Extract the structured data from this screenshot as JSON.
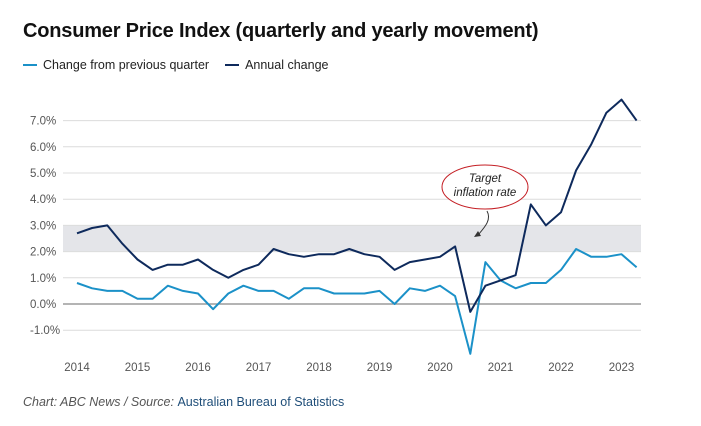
{
  "colors": {
    "quarterly": "#1b91c8",
    "annual": "#0e2a5c",
    "band": "#e4e5e9",
    "grid": "#dcdcdc",
    "zero": "#888888",
    "annotation": "#c41e24"
  },
  "footer": {
    "prefix": "Chart: ABC News / Source: ",
    "source_link": "Australian Bureau of Statistics"
  },
  "chart_data": {
    "type": "line",
    "title": "Consumer Price Index (quarterly and yearly movement)",
    "xlabel": "",
    "ylabel": "",
    "ylim": [
      -1.8,
      8.0
    ],
    "xlim": [
      2014.0,
      2023.25
    ],
    "yticks": [
      -1.0,
      0.0,
      1.0,
      2.0,
      3.0,
      4.0,
      5.0,
      6.0,
      7.0
    ],
    "ytick_labels": [
      "-1.0%",
      "0.0%",
      "1.0%",
      "2.0%",
      "3.0%",
      "4.0%",
      "5.0%",
      "6.0%",
      "7.0%"
    ],
    "xticks": [
      2014,
      2015,
      2016,
      2017,
      2018,
      2019,
      2020,
      2021,
      2022,
      2023
    ],
    "xtick_labels": [
      "2014",
      "2015",
      "2016",
      "2017",
      "2018",
      "2019",
      "2020",
      "2021",
      "2022",
      "2023"
    ],
    "grid": true,
    "legend_position": "top-left",
    "target_band": [
      2.0,
      3.0
    ],
    "annotation": {
      "text_line1": "Target",
      "text_line2": "inflation rate"
    },
    "x": [
      2014.0,
      2014.25,
      2014.5,
      2014.75,
      2015.0,
      2015.25,
      2015.5,
      2015.75,
      2016.0,
      2016.25,
      2016.5,
      2016.75,
      2017.0,
      2017.25,
      2017.5,
      2017.75,
      2018.0,
      2018.25,
      2018.5,
      2018.75,
      2019.0,
      2019.25,
      2019.5,
      2019.75,
      2020.0,
      2020.25,
      2020.5,
      2020.75,
      2021.0,
      2021.25,
      2021.5,
      2021.75,
      2022.0,
      2022.25,
      2022.5,
      2022.75,
      2023.0,
      2023.25
    ],
    "series": [
      {
        "name": "Change from previous quarter",
        "values": [
          0.8,
          0.6,
          0.5,
          0.5,
          0.2,
          0.2,
          0.7,
          0.5,
          0.4,
          -0.2,
          0.4,
          0.7,
          0.5,
          0.5,
          0.2,
          0.6,
          0.6,
          0.4,
          0.4,
          0.4,
          0.5,
          0.0,
          0.6,
          0.5,
          0.7,
          0.3,
          -1.9,
          1.6,
          0.9,
          0.6,
          0.8,
          0.8,
          1.3,
          2.1,
          1.8,
          1.8,
          1.9,
          1.4
        ]
      },
      {
        "name": "Annual change",
        "values": [
          2.7,
          2.9,
          3.0,
          2.3,
          1.7,
          1.3,
          1.5,
          1.5,
          1.7,
          1.3,
          1.0,
          1.3,
          1.5,
          2.1,
          1.9,
          1.8,
          1.9,
          1.9,
          2.1,
          1.9,
          1.8,
          1.3,
          1.6,
          1.7,
          1.8,
          2.2,
          -0.3,
          0.7,
          0.9,
          1.1,
          3.8,
          3.0,
          3.5,
          5.1,
          6.1,
          7.3,
          7.8,
          7.0
        ]
      }
    ]
  }
}
